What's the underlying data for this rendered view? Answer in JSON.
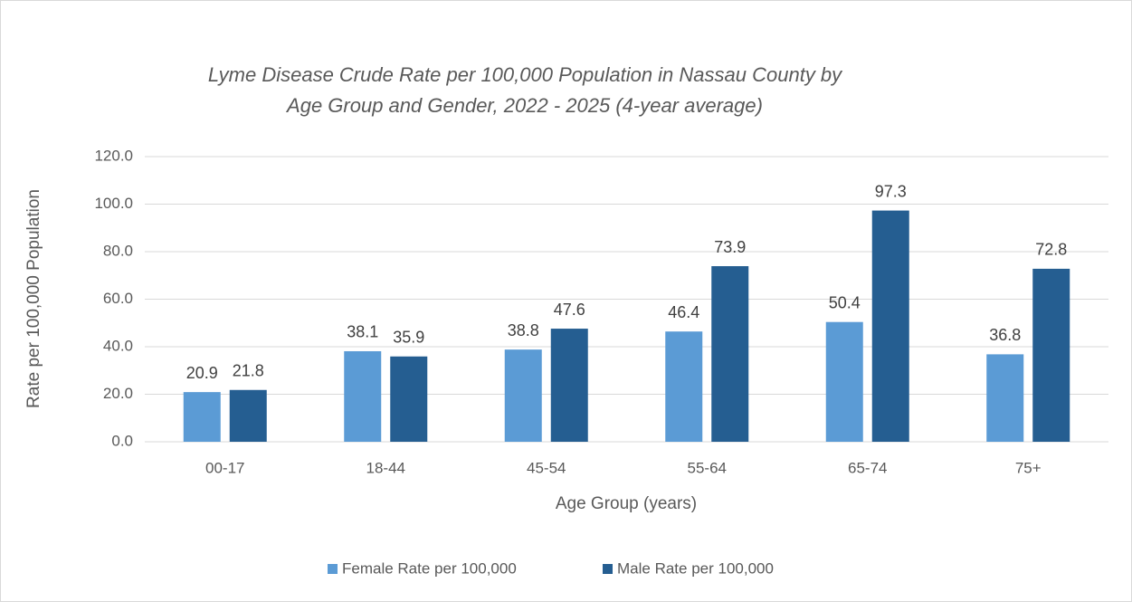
{
  "chart_data": {
    "type": "bar",
    "title": [
      "Lyme Disease Crude Rate per 100,000 Population  in Nassau County by",
      "Age Group and Gender, 2022 - 2025 (4-year average)"
    ],
    "x_label": "Age Group (years)",
    "y_label": "Rate per 100,000 Population",
    "categories": [
      "00-17",
      "18-44",
      "45-54",
      "55-64",
      "65-74",
      "75+"
    ],
    "series": [
      {
        "name": "Female Rate per 100,000",
        "color": "#5b9bd5",
        "values": [
          20.9,
          38.1,
          38.8,
          46.4,
          50.4,
          36.8
        ]
      },
      {
        "name": "Male Rate per 100,000",
        "color": "#255e91",
        "values": [
          21.8,
          35.9,
          47.6,
          73.9,
          97.3,
          72.8
        ]
      }
    ],
    "ylim": [
      0,
      120
    ],
    "yticks": [
      {
        "value": 0,
        "label": "0.0"
      },
      {
        "value": 20,
        "label": "20.0"
      },
      {
        "value": 40,
        "label": "40.0"
      },
      {
        "value": 60,
        "label": "60.0"
      },
      {
        "value": 80,
        "label": "80.0"
      },
      {
        "value": 100,
        "label": "100.0"
      },
      {
        "value": 120,
        "label": "120.0"
      }
    ],
    "grid": true,
    "legend": "bottom"
  }
}
